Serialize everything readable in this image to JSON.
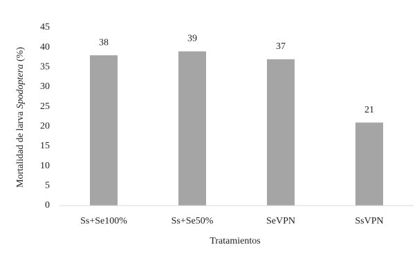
{
  "chart_data": {
    "type": "bar",
    "categories": [
      "Ss+Se100%",
      "Ss+Se50%",
      "SeVPN",
      "SsVPN"
    ],
    "values": [
      38,
      39,
      37,
      21
    ],
    "color": "#a5a5a5",
    "xlabel": "Tratamientos",
    "ylabel": [
      "Mortalidad de larva",
      "Spodoptera",
      "(%)"
    ],
    "ylim": [
      0,
      45
    ],
    "yticks": [
      0,
      5,
      10,
      15,
      20,
      25,
      30,
      35,
      40,
      45
    ],
    "grid": false
  }
}
